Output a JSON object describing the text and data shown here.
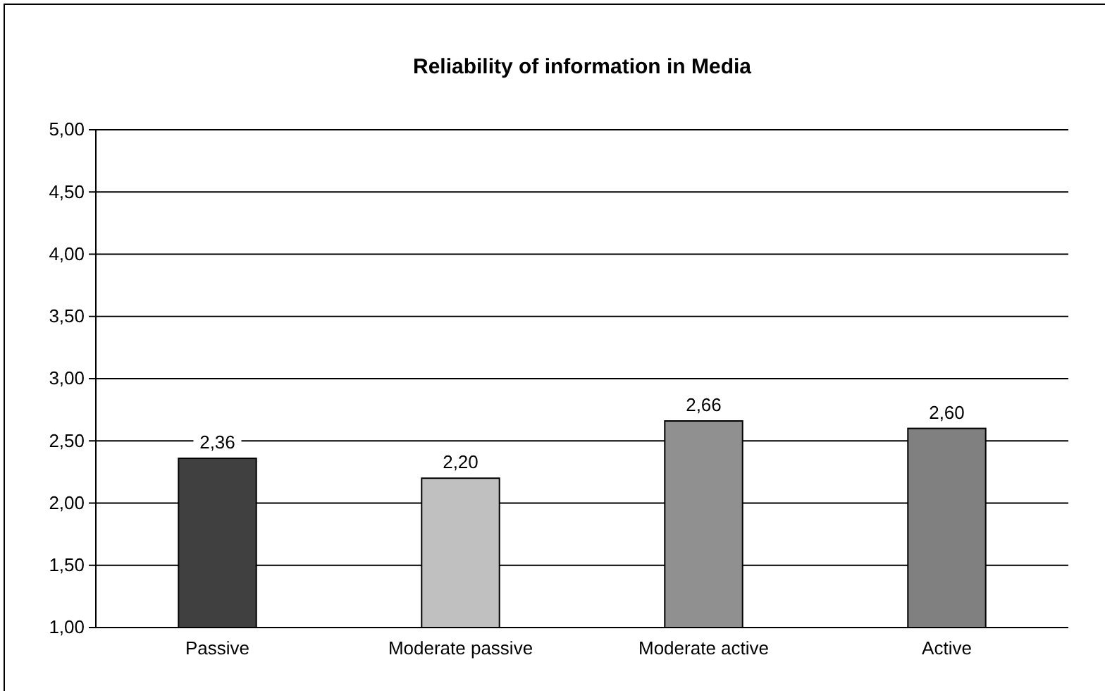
{
  "chart_data": {
    "type": "bar",
    "title": "Reliability of information in Media",
    "categories": [
      "Passive",
      "Moderate passive",
      "Moderate active",
      "Active"
    ],
    "values": [
      2.36,
      2.2,
      2.66,
      2.6
    ],
    "colors": [
      "#404040",
      "#c0c0c0",
      "#909090",
      "#808080"
    ],
    "value_labels": [
      "2,36",
      "2,20",
      "2,66",
      "2,60"
    ],
    "ylim": [
      1,
      5
    ],
    "yticks": [
      {
        "value": 1,
        "label": "1,00"
      },
      {
        "value": 1.5,
        "label": "1,50"
      },
      {
        "value": 2,
        "label": "2,00"
      },
      {
        "value": 2.5,
        "label": "2,50"
      },
      {
        "value": 3,
        "label": "3,00"
      },
      {
        "value": 3.5,
        "label": "3,50"
      },
      {
        "value": 4,
        "label": "4,00"
      },
      {
        "value": 4.5,
        "label": "4,50"
      },
      {
        "value": 5,
        "label": "5,00"
      }
    ],
    "grid": "y"
  }
}
